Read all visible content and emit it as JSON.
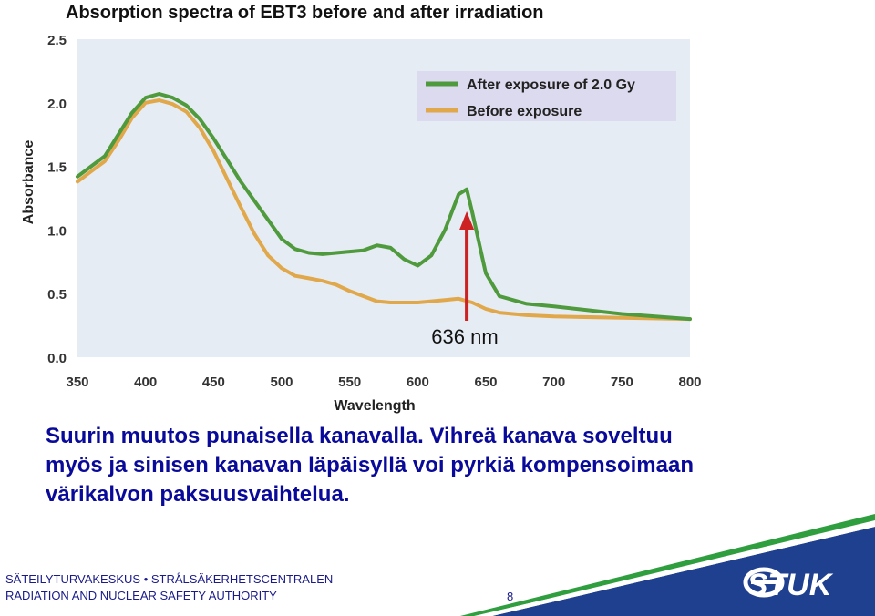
{
  "slide": {
    "caption_lines": [
      "Suurin muutos punaisella kanavalla. Vihreä kanava soveltuu",
      "myös ja sinisen kanavan läpäisyllä voi pyrkiä kompensoimaan",
      "värikalvon paksuusvaihtelua."
    ],
    "footer_org_line1": "SÄTEILYTURVAKESKUS • STRÅLSÄKERHETSCENTRALEN",
    "footer_org_line2": "RADIATION AND NUCLEAR SAFETY AUTHORITY",
    "page_number": "8",
    "logo_text": "STUK",
    "colors": {
      "caption": "#0a0a9a",
      "brand_blue": "#1f3f8f",
      "brand_green": "#2e9e3e"
    }
  },
  "chart_data": {
    "type": "line",
    "title": "Absorption spectra of EBT3 before and after irradiation",
    "xlabel": "Wavelength",
    "ylabel": "Absorbance",
    "xlim": [
      350,
      800
    ],
    "ylim": [
      0.0,
      2.5
    ],
    "xticks": [
      "350",
      "400",
      "450",
      "500",
      "550",
      "600",
      "650",
      "700",
      "750",
      "800"
    ],
    "yticks": [
      "0.0",
      "0.5",
      "1.0",
      "1.5",
      "2.0",
      "2.5"
    ],
    "legend_position": "top-right",
    "grid": false,
    "plot_background": "#e6ecf4",
    "annotation": {
      "text": "636 nm",
      "x": 636
    },
    "series": [
      {
        "name": "After exposure of 2.0 Gy",
        "color": "#4e9a3c",
        "x": [
          350,
          360,
          370,
          380,
          390,
          400,
          410,
          420,
          430,
          440,
          450,
          460,
          470,
          480,
          490,
          500,
          510,
          520,
          530,
          540,
          550,
          560,
          570,
          580,
          590,
          600,
          610,
          620,
          630,
          636,
          640,
          650,
          660,
          680,
          700,
          750,
          800
        ],
        "y": [
          1.42,
          1.5,
          1.58,
          1.75,
          1.92,
          2.04,
          2.07,
          2.04,
          1.98,
          1.87,
          1.72,
          1.55,
          1.38,
          1.23,
          1.08,
          0.93,
          0.85,
          0.82,
          0.81,
          0.82,
          0.83,
          0.84,
          0.88,
          0.86,
          0.77,
          0.72,
          0.8,
          1.0,
          1.28,
          1.32,
          1.14,
          0.66,
          0.48,
          0.42,
          0.4,
          0.34,
          0.3
        ]
      },
      {
        "name": "Before exposure",
        "color": "#e0a84a",
        "x": [
          350,
          360,
          370,
          380,
          390,
          400,
          410,
          420,
          430,
          440,
          450,
          460,
          470,
          480,
          490,
          500,
          510,
          520,
          530,
          540,
          550,
          560,
          570,
          580,
          590,
          600,
          610,
          620,
          630,
          640,
          650,
          660,
          680,
          700,
          750,
          800
        ],
        "y": [
          1.38,
          1.46,
          1.54,
          1.7,
          1.88,
          2.0,
          2.02,
          1.99,
          1.93,
          1.8,
          1.62,
          1.4,
          1.18,
          0.97,
          0.8,
          0.7,
          0.64,
          0.62,
          0.6,
          0.57,
          0.52,
          0.48,
          0.44,
          0.43,
          0.43,
          0.43,
          0.44,
          0.45,
          0.46,
          0.43,
          0.38,
          0.35,
          0.33,
          0.32,
          0.31,
          0.3
        ]
      }
    ]
  }
}
